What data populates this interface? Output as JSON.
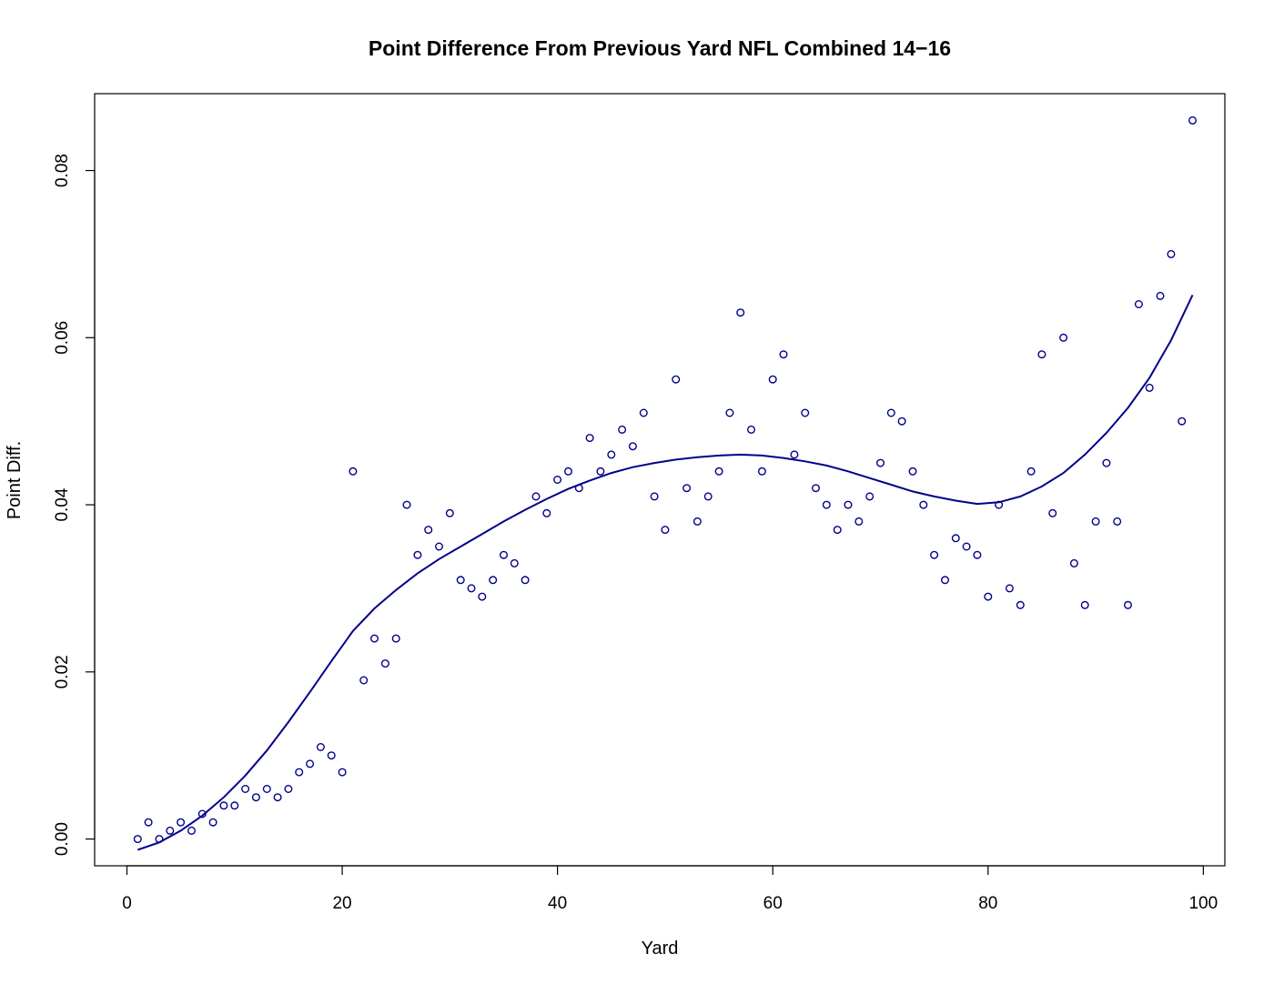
{
  "chart_data": {
    "type": "scatter",
    "title": "Point Difference From Previous Yard NFL Combined 14−16",
    "xlabel": "Yard",
    "ylabel": "Point Diff.",
    "xlim": [
      -3,
      102
    ],
    "ylim": [
      -0.0032,
      0.0892
    ],
    "x_ticks": [
      0,
      20,
      40,
      60,
      80,
      100
    ],
    "x_tick_labels": [
      "0",
      "20",
      "40",
      "60",
      "80",
      "100"
    ],
    "y_ticks": [
      0,
      0.02,
      0.04,
      0.06,
      0.08
    ],
    "y_tick_labels": [
      "0.00",
      "0.02",
      "0.04",
      "0.06",
      "0.08"
    ],
    "grid": false,
    "legend": "none",
    "color": "#00008b",
    "series": [
      {
        "kind": "points",
        "x": [
          1,
          2,
          3,
          4,
          5,
          6,
          7,
          8,
          9,
          10,
          11,
          12,
          13,
          14,
          15,
          16,
          17,
          18,
          19,
          20,
          21,
          22,
          23,
          24,
          25,
          26,
          27,
          28,
          29,
          30,
          31,
          32,
          33,
          34,
          35,
          36,
          37,
          38,
          39,
          40,
          41,
          42,
          43,
          44,
          45,
          46,
          47,
          48,
          49,
          50,
          51,
          52,
          53,
          54,
          55,
          56,
          57,
          58,
          59,
          60,
          61,
          62,
          63,
          64,
          65,
          66,
          67,
          68,
          69,
          70,
          71,
          72,
          73,
          74,
          75,
          76,
          77,
          78,
          79,
          80,
          81,
          82,
          83,
          84,
          85,
          86,
          87,
          88,
          89,
          90,
          91,
          92,
          93,
          94,
          95,
          96,
          97,
          98,
          99
        ],
        "y": [
          0.0,
          0.002,
          0.0,
          0.001,
          0.002,
          0.001,
          0.003,
          0.002,
          0.004,
          0.004,
          0.006,
          0.005,
          0.006,
          0.005,
          0.006,
          0.008,
          0.009,
          0.011,
          0.01,
          0.008,
          0.044,
          0.019,
          0.024,
          0.021,
          0.024,
          0.04,
          0.034,
          0.037,
          0.035,
          0.039,
          0.031,
          0.03,
          0.029,
          0.031,
          0.034,
          0.033,
          0.031,
          0.041,
          0.039,
          0.043,
          0.044,
          0.042,
          0.048,
          0.044,
          0.046,
          0.049,
          0.047,
          0.051,
          0.041,
          0.037,
          0.055,
          0.042,
          0.038,
          0.041,
          0.044,
          0.051,
          0.063,
          0.049,
          0.044,
          0.055,
          0.058,
          0.046,
          0.051,
          0.042,
          0.04,
          0.037,
          0.04,
          0.038,
          0.041,
          0.045,
          0.051,
          0.05,
          0.044,
          0.04,
          0.034,
          0.031,
          0.036,
          0.035,
          0.034,
          0.029,
          0.04,
          0.03,
          0.028,
          0.044,
          0.058,
          0.039,
          0.06,
          0.033,
          0.028,
          0.038,
          0.045,
          0.038,
          0.028,
          0.064,
          0.054,
          0.065,
          0.07,
          0.05,
          0.086
        ]
      },
      {
        "kind": "fit-line",
        "x": [
          1,
          3,
          5,
          7,
          9,
          11,
          13,
          15,
          17,
          19,
          21,
          23,
          25,
          27,
          29,
          31,
          33,
          35,
          37,
          39,
          41,
          43,
          45,
          47,
          49,
          51,
          53,
          55,
          57,
          59,
          61,
          63,
          65,
          67,
          69,
          71,
          73,
          75,
          77,
          79,
          81,
          83,
          85,
          87,
          89,
          91,
          93,
          95,
          97,
          99
        ],
        "y": [
          -0.0013,
          -0.0004,
          0.001,
          0.0028,
          0.005,
          0.0076,
          0.0106,
          0.014,
          0.0176,
          0.0213,
          0.0249,
          0.0276,
          0.0298,
          0.0318,
          0.0335,
          0.035,
          0.0365,
          0.038,
          0.0394,
          0.0407,
          0.0419,
          0.0429,
          0.0438,
          0.0445,
          0.045,
          0.0454,
          0.0457,
          0.0459,
          0.046,
          0.0459,
          0.0456,
          0.0452,
          0.0447,
          0.044,
          0.0432,
          0.0424,
          0.0416,
          0.041,
          0.0405,
          0.0401,
          0.0403,
          0.041,
          0.0422,
          0.0438,
          0.046,
          0.0486,
          0.0516,
          0.0552,
          0.0597,
          0.0651
        ]
      }
    ]
  }
}
